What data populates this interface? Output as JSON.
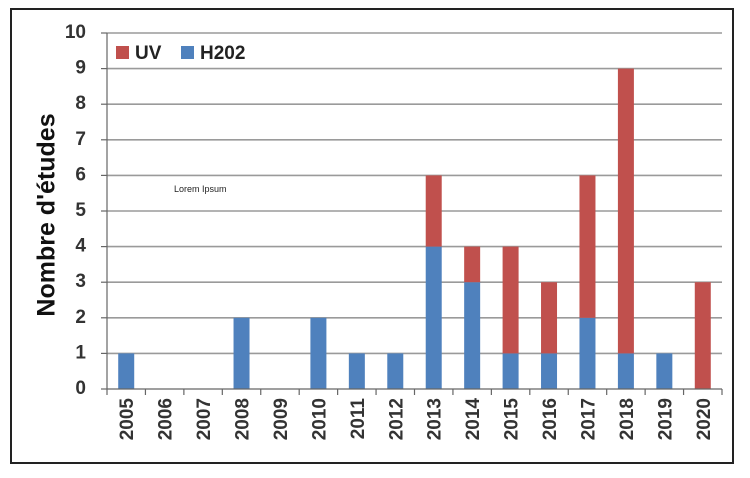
{
  "chart_data": {
    "type": "bar",
    "stacked": true,
    "categories": [
      "2005",
      "2006",
      "2007",
      "2008",
      "2009",
      "2010",
      "2011",
      "2012",
      "2013",
      "2014",
      "2015",
      "2016",
      "2017",
      "2018",
      "2019",
      "2020"
    ],
    "series": [
      {
        "name": "H202",
        "color": "#4f81bd",
        "values": [
          1,
          0,
          0,
          2,
          0,
          2,
          1,
          1,
          4,
          3,
          1,
          1,
          2,
          1,
          1,
          0
        ]
      },
      {
        "name": "UV",
        "color": "#c0504d",
        "values": [
          0,
          0,
          0,
          0,
          0,
          0,
          0,
          0,
          2,
          1,
          3,
          2,
          4,
          8,
          0,
          3
        ]
      }
    ],
    "legend_order": [
      "UV",
      "H202"
    ],
    "ylabel": "Nombre d'études",
    "xlabel": "",
    "ylim": [
      0,
      10
    ],
    "yticks": [
      0,
      1,
      2,
      3,
      4,
      5,
      6,
      7,
      8,
      9,
      10
    ],
    "grid": true,
    "legend_position": "top-left",
    "annotation": "Lorem Ipsum"
  }
}
